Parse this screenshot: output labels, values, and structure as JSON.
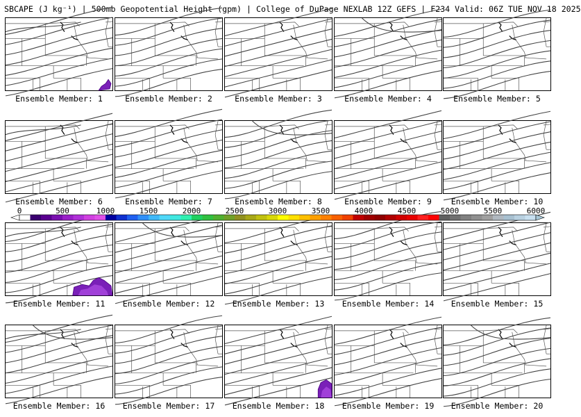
{
  "title": "SBCAPE (J kg⁻¹) | 500mb Geopotential Height (gpm) | College of DuPage NEXLAB 12Z GEFS | F234 Valid: 06Z TUE NOV 18 2025",
  "panels": [
    {
      "caption": "Ensemble Member: 1",
      "cape_blob": "bottom-right-small"
    },
    {
      "caption": "Ensemble Member: 2"
    },
    {
      "caption": "Ensemble Member: 3"
    },
    {
      "caption": "Ensemble Member: 4"
    },
    {
      "caption": "Ensemble Member: 5"
    },
    {
      "caption": "Ensemble Member: 6"
    },
    {
      "caption": "Ensemble Member: 7"
    },
    {
      "caption": "Ensemble Member: 8"
    },
    {
      "caption": "Ensemble Member: 9"
    },
    {
      "caption": "Ensemble Member: 10"
    },
    {
      "caption": "Ensemble Member: 11",
      "cape_blob": "bottom-center-large"
    },
    {
      "caption": "Ensemble Member: 12"
    },
    {
      "caption": "Ensemble Member: 13"
    },
    {
      "caption": "Ensemble Member: 14"
    },
    {
      "caption": "Ensemble Member: 15"
    },
    {
      "caption": "Ensemble Member: 16"
    },
    {
      "caption": "Ensemble Member: 17"
    },
    {
      "caption": "Ensemble Member: 18",
      "cape_blob": "bottom-right-medium"
    },
    {
      "caption": "Ensemble Member: 19"
    },
    {
      "caption": "Ensemble Member: 20"
    }
  ],
  "colorbar": {
    "labels": [
      "0",
      "500",
      "1000",
      "1500",
      "2000",
      "2500",
      "3000",
      "3500",
      "4000",
      "4500",
      "5000",
      "5500",
      "6000"
    ],
    "colors": [
      "#ffffff",
      "#3a0070",
      "#5a0090",
      "#7a10b0",
      "#9a20c8",
      "#b030d8",
      "#d040e0",
      "#e050e8",
      "#0000a0",
      "#1030d0",
      "#2060f0",
      "#3090f8",
      "#40b8f8",
      "#50d8f8",
      "#40e8e0",
      "#30f0b0",
      "#20d060",
      "#30c040",
      "#50b030",
      "#70a028",
      "#909020",
      "#a8a818",
      "#c0c010",
      "#d8d808",
      "#ffff00",
      "#ffe000",
      "#ffc000",
      "#ffa000",
      "#ff8000",
      "#f86000",
      "#f04000",
      "#c00000",
      "#a00000",
      "#900000",
      "#b00000",
      "#d00000",
      "#e80000",
      "#ff2020",
      "#ff0000",
      "#606060",
      "#707070",
      "#808080",
      "#909090",
      "#a0a0a0",
      "#b0b8c0",
      "#a8c0d0",
      "#b8d0e0",
      "#c8e0f0"
    ]
  }
}
